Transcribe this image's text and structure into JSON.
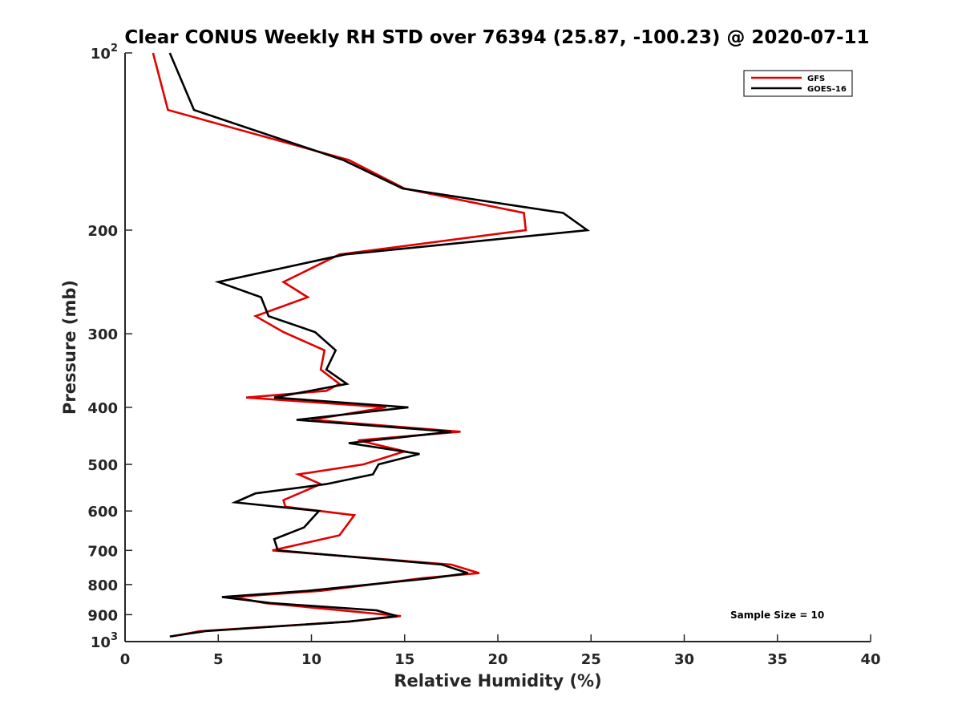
{
  "chart_data": {
    "type": "line",
    "title": "Clear CONUS Weekly RH STD over 76394 (25.87, -100.23) @ 2020-07-11",
    "xlabel": "Relative Humidity (%)",
    "ylabel": "Pressure (mb)",
    "xlim": [
      0,
      40
    ],
    "ylim": [
      100,
      1000
    ],
    "yscale": "log",
    "y_inverted": true,
    "grid": false,
    "legend_position": "top-right",
    "x_ticks": [
      "0",
      "5",
      "10",
      "15",
      "20",
      "25",
      "30",
      "35",
      "40"
    ],
    "y_ticks": [
      {
        "value": 100,
        "base": "10",
        "exp": "2"
      },
      {
        "value": 200,
        "label": "200"
      },
      {
        "value": 300,
        "label": "300"
      },
      {
        "value": 400,
        "label": "400"
      },
      {
        "value": 500,
        "label": "500"
      },
      {
        "value": 600,
        "label": "600"
      },
      {
        "value": 700,
        "label": "700"
      },
      {
        "value": 800,
        "label": "800"
      },
      {
        "value": 900,
        "label": "900"
      },
      {
        "value": 1000,
        "base": "10",
        "exp": "3"
      }
    ],
    "annotation": "Sample Size = 10",
    "series": [
      {
        "name": "GFS",
        "color": "#e00000",
        "points": [
          [
            1.5,
            100
          ],
          [
            2.3,
            125
          ],
          [
            12.0,
            152
          ],
          [
            15.0,
            170
          ],
          [
            21.4,
            187
          ],
          [
            21.5,
            200
          ],
          [
            11.5,
            220
          ],
          [
            8.5,
            245
          ],
          [
            9.8,
            260
          ],
          [
            7.0,
            280
          ],
          [
            8.5,
            298
          ],
          [
            10.7,
            320
          ],
          [
            10.5,
            345
          ],
          [
            11.5,
            365
          ],
          [
            10.8,
            375
          ],
          [
            6.5,
            385
          ],
          [
            14.0,
            400
          ],
          [
            10.0,
            420
          ],
          [
            18.0,
            440
          ],
          [
            12.5,
            455
          ],
          [
            15.0,
            475
          ],
          [
            12.8,
            500
          ],
          [
            9.3,
            520
          ],
          [
            10.5,
            540
          ],
          [
            8.5,
            575
          ],
          [
            8.6,
            590
          ],
          [
            12.3,
            610
          ],
          [
            11.5,
            660
          ],
          [
            7.9,
            700
          ],
          [
            17.5,
            740
          ],
          [
            19.0,
            765
          ],
          [
            16.0,
            780
          ],
          [
            10.5,
            820
          ],
          [
            5.8,
            840
          ],
          [
            7.5,
            860
          ],
          [
            14.8,
            905
          ],
          [
            12.0,
            925
          ],
          [
            4.0,
            960
          ],
          [
            2.5,
            980
          ]
        ]
      },
      {
        "name": "GOES-16",
        "color": "#000000",
        "points": [
          [
            2.4,
            100
          ],
          [
            3.7,
            125
          ],
          [
            11.7,
            152
          ],
          [
            14.9,
            170
          ],
          [
            23.5,
            187
          ],
          [
            24.8,
            200
          ],
          [
            11.8,
            220
          ],
          [
            5.0,
            245
          ],
          [
            7.3,
            260
          ],
          [
            7.7,
            280
          ],
          [
            10.2,
            298
          ],
          [
            11.3,
            320
          ],
          [
            10.8,
            345
          ],
          [
            11.9,
            365
          ],
          [
            8.0,
            385
          ],
          [
            15.2,
            400
          ],
          [
            9.2,
            420
          ],
          [
            17.5,
            440
          ],
          [
            12.0,
            460
          ],
          [
            15.8,
            480
          ],
          [
            13.6,
            500
          ],
          [
            13.3,
            520
          ],
          [
            10.8,
            540
          ],
          [
            7.0,
            560
          ],
          [
            5.9,
            580
          ],
          [
            10.4,
            600
          ],
          [
            9.6,
            640
          ],
          [
            8.0,
            670
          ],
          [
            8.2,
            700
          ],
          [
            17.0,
            740
          ],
          [
            18.4,
            765
          ],
          [
            16.5,
            780
          ],
          [
            9.8,
            820
          ],
          [
            5.2,
            840
          ],
          [
            7.8,
            860
          ],
          [
            13.5,
            885
          ],
          [
            14.6,
            905
          ],
          [
            12.0,
            925
          ],
          [
            4.3,
            960
          ],
          [
            2.4,
            980
          ]
        ]
      }
    ]
  }
}
